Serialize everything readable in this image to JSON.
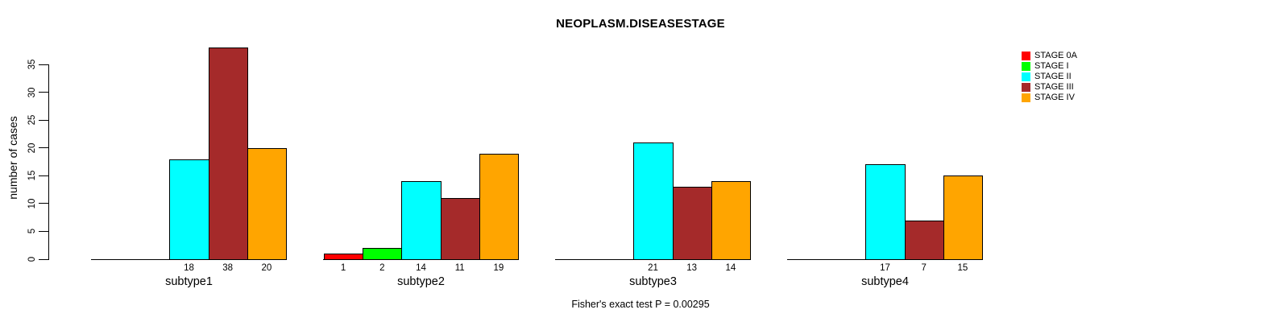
{
  "chart_data": {
    "type": "bar",
    "title": "NEOPLASM.DISEASESTAGE",
    "ylabel": "number of cases",
    "xlabel": "",
    "footnote": "Fisher's exact test P = 0.00295",
    "categories": [
      "subtype1",
      "subtype2",
      "subtype3",
      "subtype4"
    ],
    "series": [
      {
        "name": "STAGE 0A",
        "color": "#FF0000",
        "values": [
          0,
          1,
          0,
          0
        ]
      },
      {
        "name": "STAGE I",
        "color": "#00FF00",
        "values": [
          0,
          2,
          0,
          0
        ]
      },
      {
        "name": "STAGE II",
        "color": "#00FFFF",
        "values": [
          18,
          14,
          21,
          17
        ]
      },
      {
        "name": "STAGE III",
        "color": "#A52A2A",
        "values": [
          38,
          11,
          13,
          7
        ]
      },
      {
        "name": "STAGE IV",
        "color": "#FFA500",
        "values": [
          20,
          19,
          14,
          15
        ]
      }
    ],
    "yticks": [
      0,
      5,
      10,
      15,
      20,
      25,
      30,
      35
    ],
    "ylim": [
      0,
      38
    ],
    "grid": false,
    "legend_position": "top-right",
    "bar_value_labels": "non-zero values printed below the baseline under each bar"
  }
}
